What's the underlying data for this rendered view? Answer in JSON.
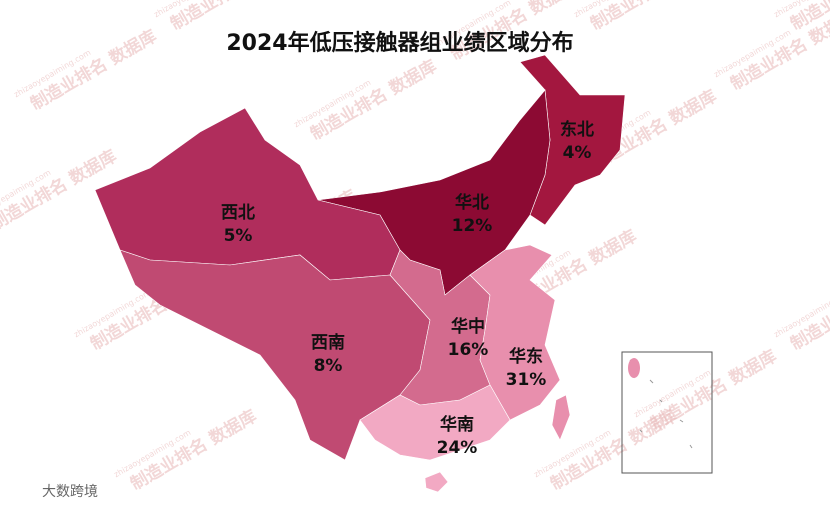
{
  "chart_data": {
    "type": "map",
    "title": "2024年低压接触器组业绩区域分布",
    "categories": [
      "东北",
      "华北",
      "西北",
      "西南",
      "华中",
      "华东",
      "华南"
    ],
    "values": [
      4,
      12,
      5,
      8,
      16,
      31,
      24
    ],
    "value_labels": [
      "4%",
      "12%",
      "5%",
      "8%",
      "16%",
      "31%",
      "24%"
    ],
    "colors": [
      "#a3173f",
      "#8c0a33",
      "#b02d5c",
      "#c04a72",
      "#d36b8e",
      "#e88fad",
      "#f2a9c3"
    ],
    "watermark": "制造业排名 数据库",
    "watermark_url": "zhizaoyepaiming.com",
    "source": "大数跨境"
  }
}
